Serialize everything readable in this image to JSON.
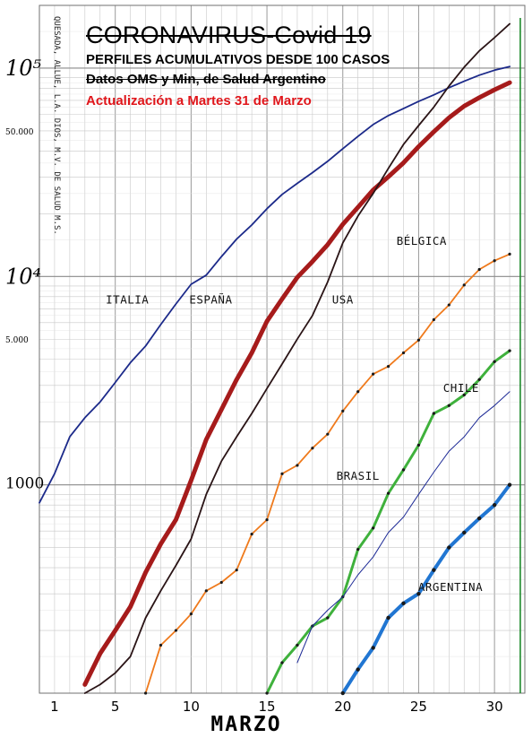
{
  "header": {
    "title": "CORONAVIRUS-Covid 19",
    "subtitle": "PERFILES ACUMULATIVOS DESDE 100 CASOS",
    "source": "Datos OMS y Min, de Salud Argentino",
    "update": "Actualización  a Martes 31 de Marzo"
  },
  "chart_data": {
    "type": "line",
    "x_scale": "linear",
    "y_scale": "log",
    "xlabel": "MARZO",
    "ylabel": "",
    "xlim": [
      0,
      32
    ],
    "ylim": [
      100,
      200000
    ],
    "x_ticks": [
      1,
      5,
      10,
      15,
      20,
      25,
      30
    ],
    "x_tick_labels": [
      "1",
      "5",
      "10",
      "15",
      "20",
      "25",
      "30"
    ],
    "y_tick_labels": [
      {
        "value": 100000,
        "label": "10⁵"
      },
      {
        "value": 50000,
        "label": "50.000"
      },
      {
        "value": 10000,
        "label": "10⁴"
      },
      {
        "value": 5000,
        "label": "5.000"
      },
      {
        "value": 1000,
        "label": "1000"
      }
    ],
    "vertical_marker": {
      "x": 31.7,
      "color": "#1e8a2c"
    },
    "grid": true,
    "series": [
      {
        "name": "ITALIA",
        "color": "#1c2a8a",
        "width": 1.8,
        "dots": false,
        "x": [
          0,
          1,
          2,
          3,
          4,
          5,
          6,
          7,
          8,
          9,
          10,
          11,
          12,
          13,
          14,
          15,
          16,
          17,
          18,
          19,
          20,
          21,
          22,
          23,
          24,
          25,
          26,
          27,
          28,
          29,
          30,
          31
        ],
        "y": [
          820,
          1130,
          1700,
          2100,
          2500,
          3100,
          3860,
          4640,
          5880,
          7380,
          9170,
          10150,
          12460,
          15110,
          17660,
          21160,
          24750,
          27980,
          31510,
          35710,
          41040,
          47020,
          53580,
          59140,
          63930,
          69180,
          74390,
          80540,
          86500,
          92470,
          97690,
          101740
        ]
      },
      {
        "name": "ESPAÑA",
        "color": "#a61b1b",
        "width": 5,
        "dots": false,
        "x": [
          3,
          4,
          5,
          6,
          7,
          8,
          9,
          10,
          11,
          12,
          13,
          14,
          15,
          16,
          17,
          18,
          19,
          20,
          21,
          22,
          23,
          24,
          25,
          26,
          27,
          28,
          29,
          30,
          31
        ],
        "y": [
          110,
          155,
          200,
          260,
          380,
          520,
          680,
          1050,
          1650,
          2300,
          3200,
          4300,
          6100,
          7800,
          9900,
          11800,
          14200,
          17800,
          21500,
          26000,
          30100,
          35100,
          42000,
          49500,
          57800,
          65700,
          72200,
          78700,
          85200
        ]
      },
      {
        "name": "USA",
        "color": "#2a1416",
        "width": 1.8,
        "dots": false,
        "x": [
          3,
          4,
          5,
          6,
          7,
          8,
          9,
          10,
          11,
          12,
          13,
          14,
          15,
          16,
          17,
          18,
          19,
          20,
          21,
          22,
          23,
          24,
          25,
          26,
          27,
          28,
          29,
          30,
          31
        ],
        "y": [
          100,
          110,
          125,
          150,
          230,
          310,
          410,
          550,
          900,
          1300,
          1700,
          2200,
          2900,
          3800,
          5000,
          6500,
          9400,
          14500,
          19500,
          25000,
          33000,
          43000,
          53000,
          65000,
          82000,
          101000,
          121000,
          140000,
          163000
        ]
      },
      {
        "name": "BÉLGICA",
        "color": "#ef7a1c",
        "width": 1.8,
        "dots": true,
        "x": [
          7,
          8,
          9,
          10,
          11,
          12,
          13,
          14,
          15,
          16,
          17,
          18,
          19,
          20,
          21,
          22,
          23,
          24,
          25,
          26,
          27,
          28,
          29,
          30,
          31
        ],
        "y": [
          100,
          170,
          200,
          240,
          310,
          340,
          390,
          580,
          680,
          1130,
          1240,
          1500,
          1750,
          2260,
          2800,
          3400,
          3700,
          4300,
          4950,
          6200,
          7300,
          9100,
          10800,
          11900,
          12800
        ]
      },
      {
        "name": "BRASIL",
        "color": "#3fb13c",
        "width": 3,
        "dots": true,
        "x": [
          15,
          16,
          17,
          18,
          19,
          20,
          21,
          22,
          23,
          24,
          25,
          26,
          27,
          28,
          29,
          30,
          31
        ],
        "y": [
          100,
          140,
          170,
          210,
          230,
          290,
          490,
          620,
          910,
          1180,
          1550,
          2200,
          2400,
          2700,
          3200,
          3900,
          4400
        ]
      },
      {
        "name": "CHILE",
        "color": "#1d2a96",
        "width": 1,
        "dots": false,
        "x": [
          17,
          18,
          19,
          20,
          21,
          22,
          23,
          24,
          25,
          26,
          27,
          28,
          29,
          30,
          31
        ],
        "y": [
          140,
          210,
          250,
          290,
          370,
          450,
          590,
          700,
          900,
          1150,
          1450,
          1700,
          2100,
          2400,
          2800
        ]
      },
      {
        "name": "ARGENTINA",
        "color": "#2176d2",
        "width": 4,
        "dots": true,
        "x": [
          20,
          21,
          22,
          23,
          24,
          25,
          26,
          27,
          28,
          29,
          30,
          31
        ],
        "y": [
          100,
          130,
          165,
          230,
          270,
          300,
          390,
          500,
          590,
          690,
          800,
          1000
        ]
      }
    ],
    "labels": [
      {
        "series": "ITALIA",
        "text": "ITALIA",
        "x": 5.8,
        "y": 7400
      },
      {
        "series": "ESPAÑA",
        "text": "ESPAÑA",
        "x": 11.3,
        "y": 7400
      },
      {
        "series": "USA",
        "text": "USA",
        "x": 20,
        "y": 7400
      },
      {
        "series": "BÉLGICA",
        "text": "BÉLGICA",
        "x": 25.2,
        "y": 14200
      },
      {
        "series": "CHILE",
        "text": "CHILE",
        "x": 27.8,
        "y": 2800
      },
      {
        "series": "BRASIL",
        "text": "BRASIL",
        "x": 21,
        "y": 1060
      },
      {
        "series": "ARGENTINA",
        "text": "ARGENTINA",
        "x": 27.1,
        "y": 310
      }
    ],
    "margin_annotation": "QUESADA, ALLUE, L.A. DIOS, M.V. DE SALUD M.S."
  }
}
